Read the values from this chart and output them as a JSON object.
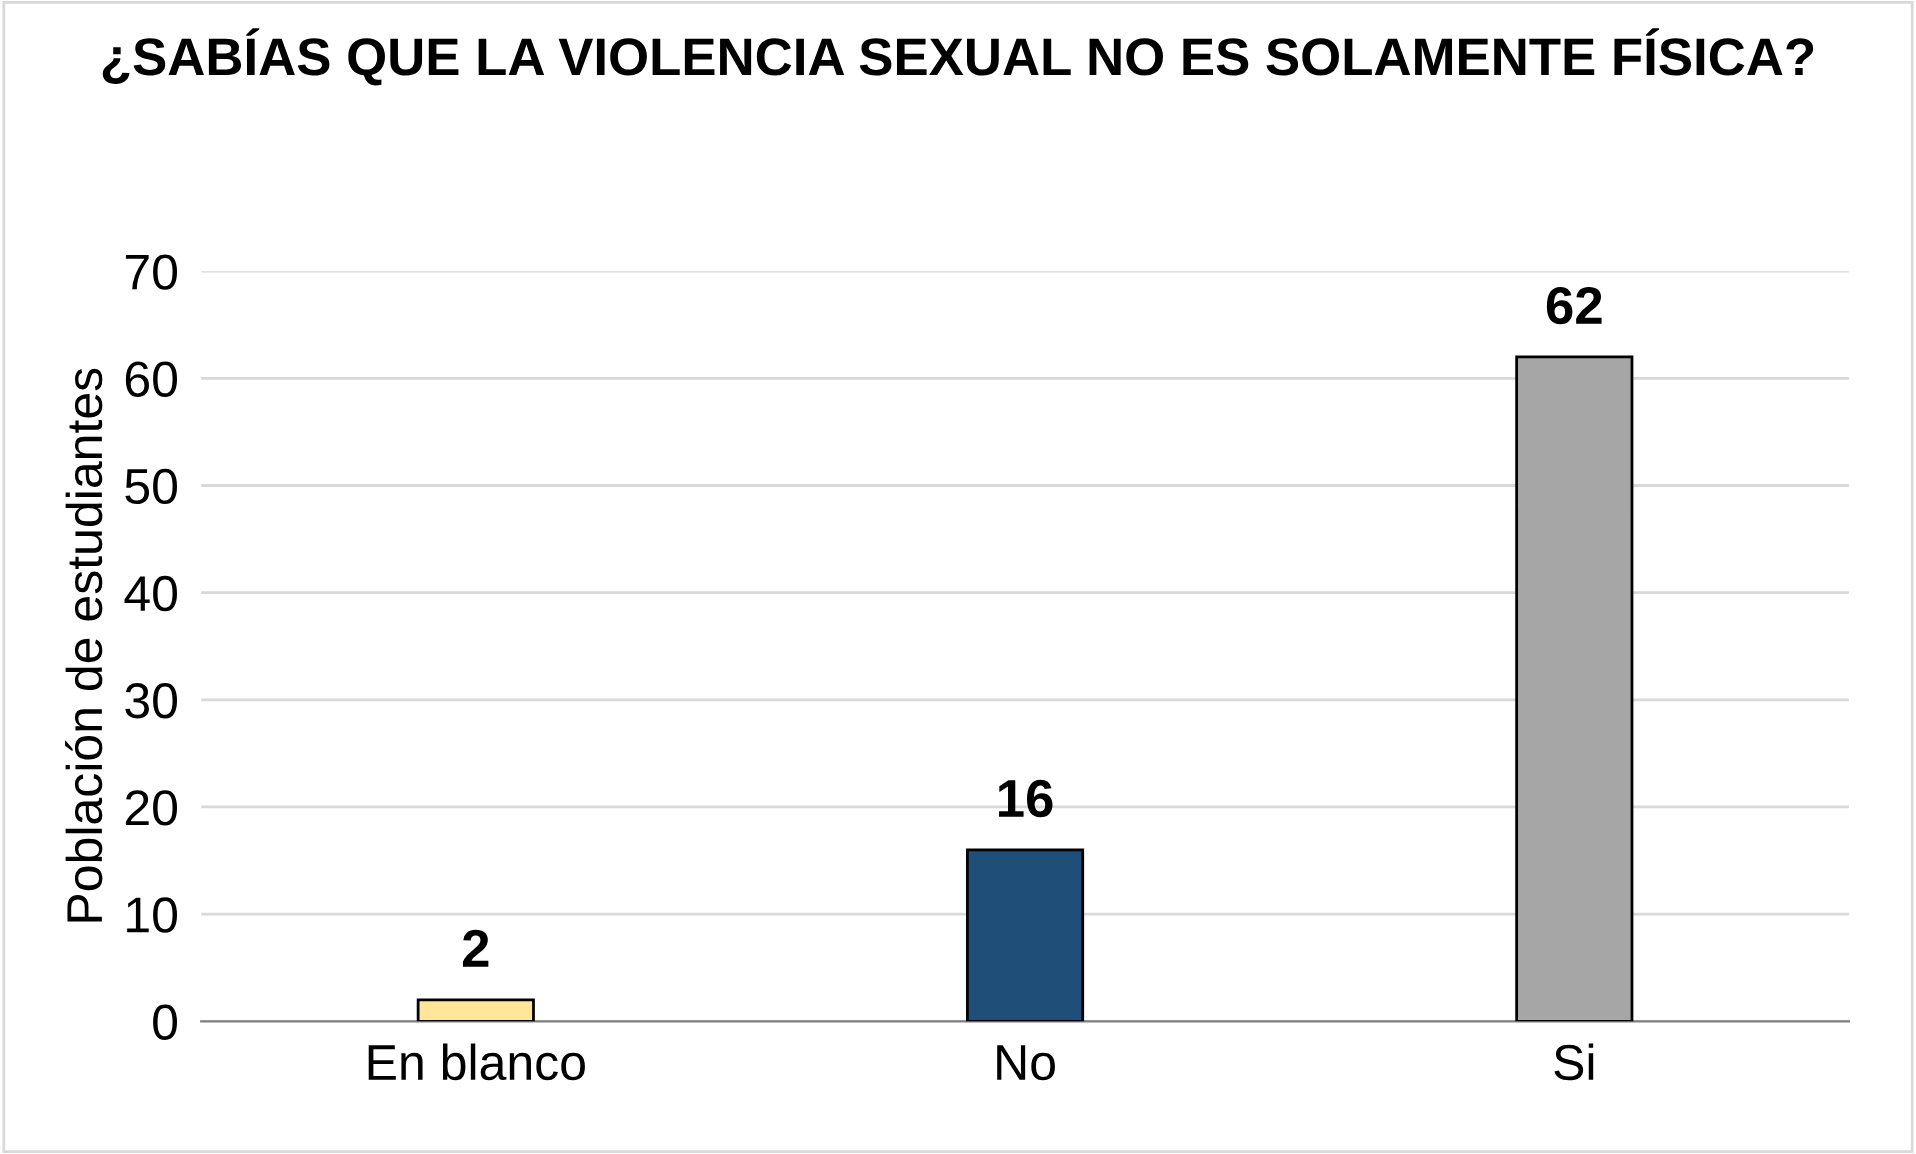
{
  "chart_data": {
    "type": "bar",
    "title": "¿SABÍAS QUE LA VIOLENCIA SEXUAL NO ES SOLAMENTE FÍSICA?",
    "ylabel": "Población de estudiantes",
    "categories": [
      "En blanco",
      "No",
      "Si"
    ],
    "values": [
      2,
      16,
      62
    ],
    "colors": [
      "#ffe699",
      "#1f4e79",
      "#a6a6a6"
    ],
    "ylim": [
      0,
      70
    ],
    "yticks": [
      0,
      10,
      20,
      30,
      40,
      50,
      60,
      70
    ],
    "grid": "y",
    "data_labels": true,
    "legend": false
  }
}
